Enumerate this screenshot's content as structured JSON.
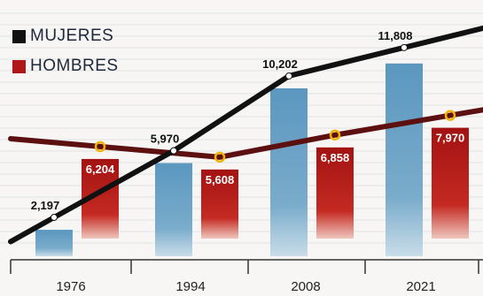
{
  "chart_data": {
    "type": "bar",
    "categories": [
      "1976",
      "1994",
      "2008",
      "2021"
    ],
    "series": [
      {
        "name": "MUJERES",
        "values": [
          2197,
          5970,
          10202,
          11808
        ],
        "color": "#111111",
        "bar_color": "#4f8fb8"
      },
      {
        "name": "HOMBRES",
        "values": [
          6204,
          5608,
          6858,
          7970
        ],
        "color": "#5c1010",
        "bar_color": "#b01818",
        "marker_color": "#f2b200"
      }
    ],
    "data_labels": {
      "mujeres": [
        "2,197",
        "5,970",
        "10,202",
        "11,808"
      ],
      "hombres": [
        "6,204",
        "5,608",
        "6,858",
        "7,970"
      ]
    },
    "legend": [
      "MUJERES",
      "HOMBRES"
    ],
    "legend_position": "top-left",
    "grid": true,
    "ylim": [
      0,
      13000
    ]
  }
}
